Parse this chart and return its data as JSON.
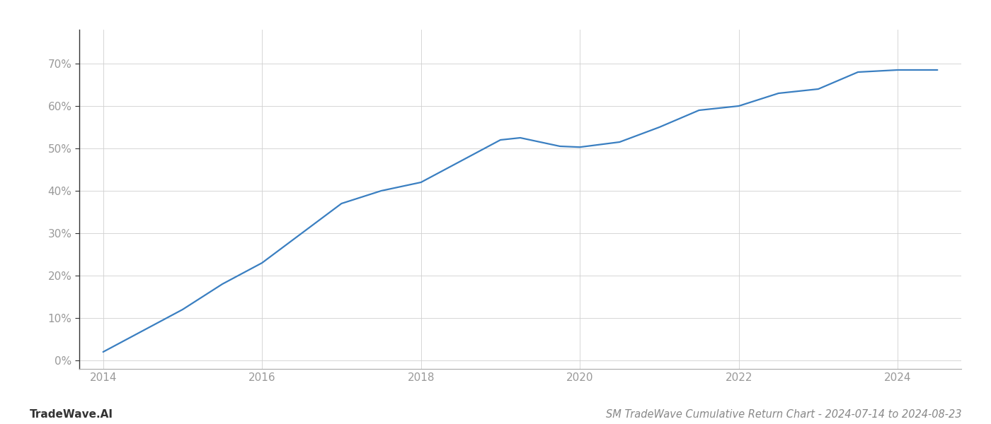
{
  "x_values": [
    2014.0,
    2014.5,
    2015.0,
    2015.5,
    2016.0,
    2016.5,
    2017.0,
    2017.5,
    2018.0,
    2018.5,
    2019.0,
    2019.25,
    2019.75,
    2020.0,
    2020.5,
    2021.0,
    2021.5,
    2022.0,
    2022.5,
    2023.0,
    2023.5,
    2024.0,
    2024.5
  ],
  "y_values": [
    0.02,
    0.07,
    0.12,
    0.18,
    0.23,
    0.3,
    0.37,
    0.4,
    0.42,
    0.47,
    0.52,
    0.525,
    0.505,
    0.503,
    0.515,
    0.55,
    0.59,
    0.6,
    0.63,
    0.64,
    0.68,
    0.685,
    0.685
  ],
  "line_color": "#3a7fc1",
  "line_width": 1.6,
  "title": "SM TradeWave Cumulative Return Chart - 2024-07-14 to 2024-08-23",
  "title_fontsize": 10.5,
  "ytick_labels": [
    "0%",
    "10%",
    "20%",
    "30%",
    "40%",
    "50%",
    "60%",
    "70%"
  ],
  "ytick_values": [
    0,
    0.1,
    0.2,
    0.3,
    0.4,
    0.5,
    0.6,
    0.7
  ],
  "xtick_values": [
    2014,
    2016,
    2018,
    2020,
    2022,
    2024
  ],
  "xlim": [
    2013.7,
    2024.8
  ],
  "ylim": [
    -0.02,
    0.78
  ],
  "grid_color": "#d0d0d0",
  "grid_linestyle": "-",
  "grid_linewidth": 0.6,
  "background_color": "#ffffff",
  "watermark_text": "TradeWave.AI",
  "watermark_fontsize": 11,
  "watermark_color": "#333333",
  "watermark_bold": true,
  "title_color": "#888888",
  "tick_color": "#999999",
  "tick_fontsize": 11,
  "left_spine_color": "#333333",
  "bottom_spine_color": "#aaaaaa"
}
